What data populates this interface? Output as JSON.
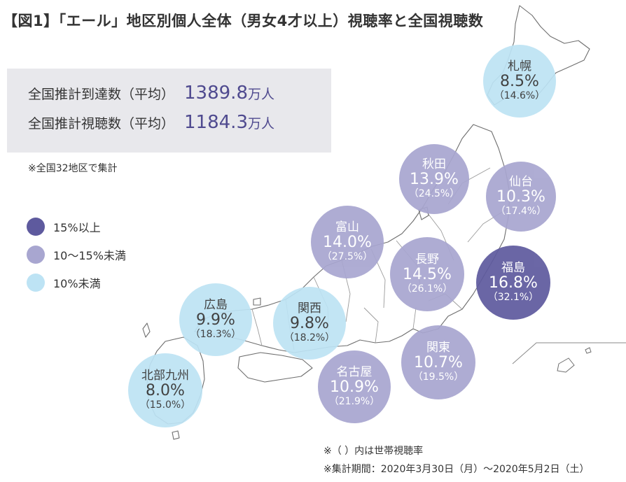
{
  "title": "【図1】「エール」地区別個人全体（男女4才以上）視聴率と全国視聴数",
  "summary": {
    "reach_label": "全国推計到達数（平均）",
    "reach_value": "1389.8",
    "reach_unit": "万人",
    "viewers_label": "全国推計視聴数（平均）",
    "viewers_value": "1184.3",
    "viewers_unit": "万人"
  },
  "region_note": "※全国32地区で集計",
  "legend": [
    {
      "label": "15%以上",
      "color": "#5e5a9e"
    },
    {
      "label": "10〜15%未満",
      "color": "#a8a6d0"
    },
    {
      "label": "10%未満",
      "color": "#bde3f4"
    }
  ],
  "chart_data": {
    "type": "bubble-map",
    "unit": "%",
    "regions": [
      {
        "name": "札幌",
        "value": 8.5,
        "value_label": "8.5%",
        "household": 14.6,
        "household_label": "（14.6%）"
      },
      {
        "name": "秋田",
        "value": 13.9,
        "value_label": "13.9%",
        "household": 24.5,
        "household_label": "（24.5%）"
      },
      {
        "name": "仙台",
        "value": 10.3,
        "value_label": "10.3%",
        "household": 17.4,
        "household_label": "（17.4%）"
      },
      {
        "name": "富山",
        "value": 14.0,
        "value_label": "14.0%",
        "household": 27.5,
        "household_label": "（27.5%）"
      },
      {
        "name": "長野",
        "value": 14.5,
        "value_label": "14.5%",
        "household": 26.1,
        "household_label": "（26.1%）"
      },
      {
        "name": "福島",
        "value": 16.8,
        "value_label": "16.8%",
        "household": 32.1,
        "household_label": "（32.1%）"
      },
      {
        "name": "広島",
        "value": 9.9,
        "value_label": "9.9%",
        "household": 18.3,
        "household_label": "（18.3%）"
      },
      {
        "name": "関西",
        "value": 9.8,
        "value_label": "9.8%",
        "household": 18.2,
        "household_label": "（18.2%）"
      },
      {
        "name": "関東",
        "value": 10.7,
        "value_label": "10.7%",
        "household": 19.5,
        "household_label": "（19.5%）"
      },
      {
        "name": "名古屋",
        "value": 10.9,
        "value_label": "10.9%",
        "household": 21.9,
        "household_label": "（21.9%）"
      },
      {
        "name": "北部九州",
        "value": 8.0,
        "value_label": "8.0%",
        "household": 15.0,
        "household_label": "（15.0%）"
      }
    ]
  },
  "footnotes": {
    "household": "※（ ）内は世帯視聴率",
    "period": "※集計期間：2020年3月30日（月）〜2020年5月2日（土）"
  }
}
